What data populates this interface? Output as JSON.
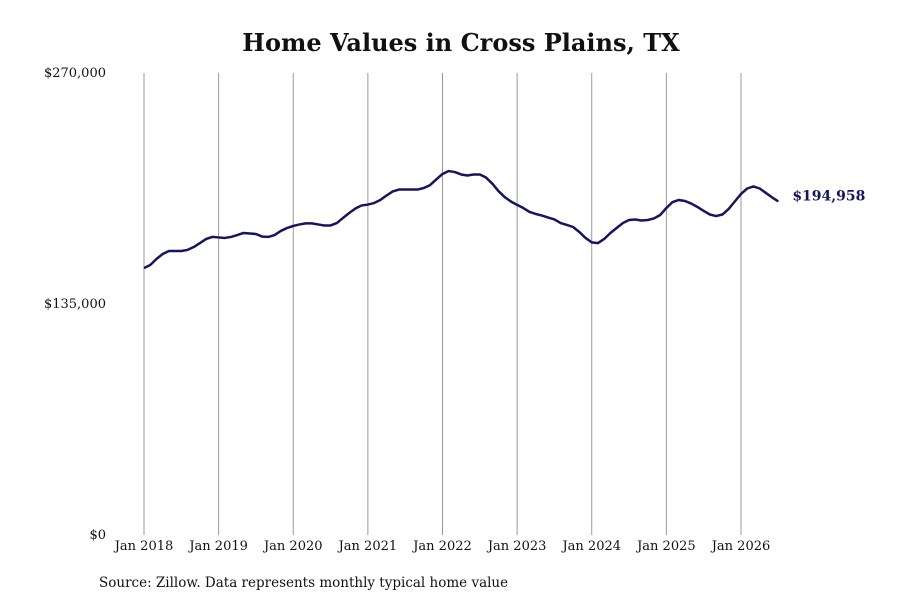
{
  "chart_data": {
    "type": "line",
    "title": "Home Values in Cross Plains, TX",
    "source": "Source: Zillow. Data represents monthly typical home value",
    "categories": [
      "Jan 2018",
      null,
      null,
      null,
      null,
      null,
      null,
      null,
      null,
      null,
      null,
      null,
      "Jan 2019",
      null,
      null,
      null,
      null,
      null,
      null,
      null,
      null,
      null,
      null,
      null,
      "Jan 2020",
      null,
      null,
      null,
      null,
      null,
      null,
      null,
      null,
      null,
      null,
      null,
      "Jan 2021",
      null,
      null,
      null,
      null,
      null,
      null,
      null,
      null,
      null,
      null,
      null,
      "Jan 2022",
      null,
      null,
      null,
      null,
      null,
      null,
      null,
      null,
      null,
      null,
      null,
      "Jan 2023",
      null,
      null,
      null,
      null,
      null,
      null,
      null,
      null,
      null,
      null,
      null,
      "Jan 2024",
      null,
      null,
      null,
      null,
      null,
      null,
      null,
      null,
      null,
      null,
      null,
      "Jan 2025",
      null,
      null,
      null,
      null,
      null,
      null,
      null,
      null,
      null,
      null,
      null,
      "Jan 2026",
      null,
      null,
      null,
      null,
      null,
      null
    ],
    "series": [
      {
        "name": "Home value",
        "color": "#16165e",
        "values": [
          156000,
          157800,
          161300,
          164200,
          166000,
          166000,
          166000,
          166600,
          168300,
          170600,
          173000,
          174200,
          173900,
          173600,
          174200,
          175300,
          176500,
          176200,
          175900,
          174400,
          174200,
          175300,
          177700,
          179400,
          180600,
          181500,
          182100,
          182100,
          181500,
          180900,
          180900,
          182300,
          185300,
          188200,
          190800,
          192600,
          193100,
          194000,
          195800,
          198400,
          200800,
          201900,
          201900,
          201900,
          201900,
          202800,
          204500,
          207800,
          211000,
          212700,
          212100,
          210700,
          210100,
          210700,
          210700,
          208900,
          205400,
          201000,
          197500,
          194900,
          192900,
          191100,
          188800,
          187600,
          186700,
          185500,
          184400,
          182300,
          181200,
          180000,
          177100,
          173600,
          171000,
          170600,
          173000,
          176500,
          179400,
          182300,
          184100,
          184400,
          183800,
          184100,
          185000,
          187000,
          191100,
          194600,
          195800,
          195200,
          193700,
          191700,
          189400,
          187300,
          186400,
          187300,
          190500,
          194900,
          199300,
          202500,
          203700,
          202500,
          199900,
          197300,
          194958
        ],
        "value_labels": [
          null,
          null,
          null,
          null,
          null,
          null,
          null,
          null,
          null,
          null,
          null,
          null,
          null,
          null,
          null,
          null,
          null,
          null,
          null,
          null,
          null,
          null,
          null,
          null,
          null,
          null,
          null,
          null,
          null,
          null,
          null,
          null,
          null,
          null,
          null,
          null,
          null,
          null,
          null,
          null,
          null,
          null,
          null,
          null,
          null,
          null,
          null,
          null,
          null,
          null,
          null,
          null,
          null,
          null,
          null,
          null,
          null,
          null,
          null,
          null,
          null,
          null,
          null,
          null,
          null,
          null,
          null,
          null,
          null,
          null,
          null,
          null,
          null,
          null,
          null,
          null,
          null,
          null,
          null,
          null,
          null,
          null,
          null,
          null,
          null,
          null,
          null,
          null,
          null,
          null,
          null,
          null,
          null,
          null,
          null,
          null,
          null,
          null,
          null,
          null,
          null,
          null,
          "$194,958"
        ]
      }
    ],
    "ylim": [
      0,
      270000
    ],
    "yticks": [
      {
        "value": 0,
        "label": "$0"
      },
      {
        "value": 135000,
        "label": "$135,000"
      },
      {
        "value": 270000,
        "label": "$270,000"
      }
    ],
    "grid": "x"
  }
}
